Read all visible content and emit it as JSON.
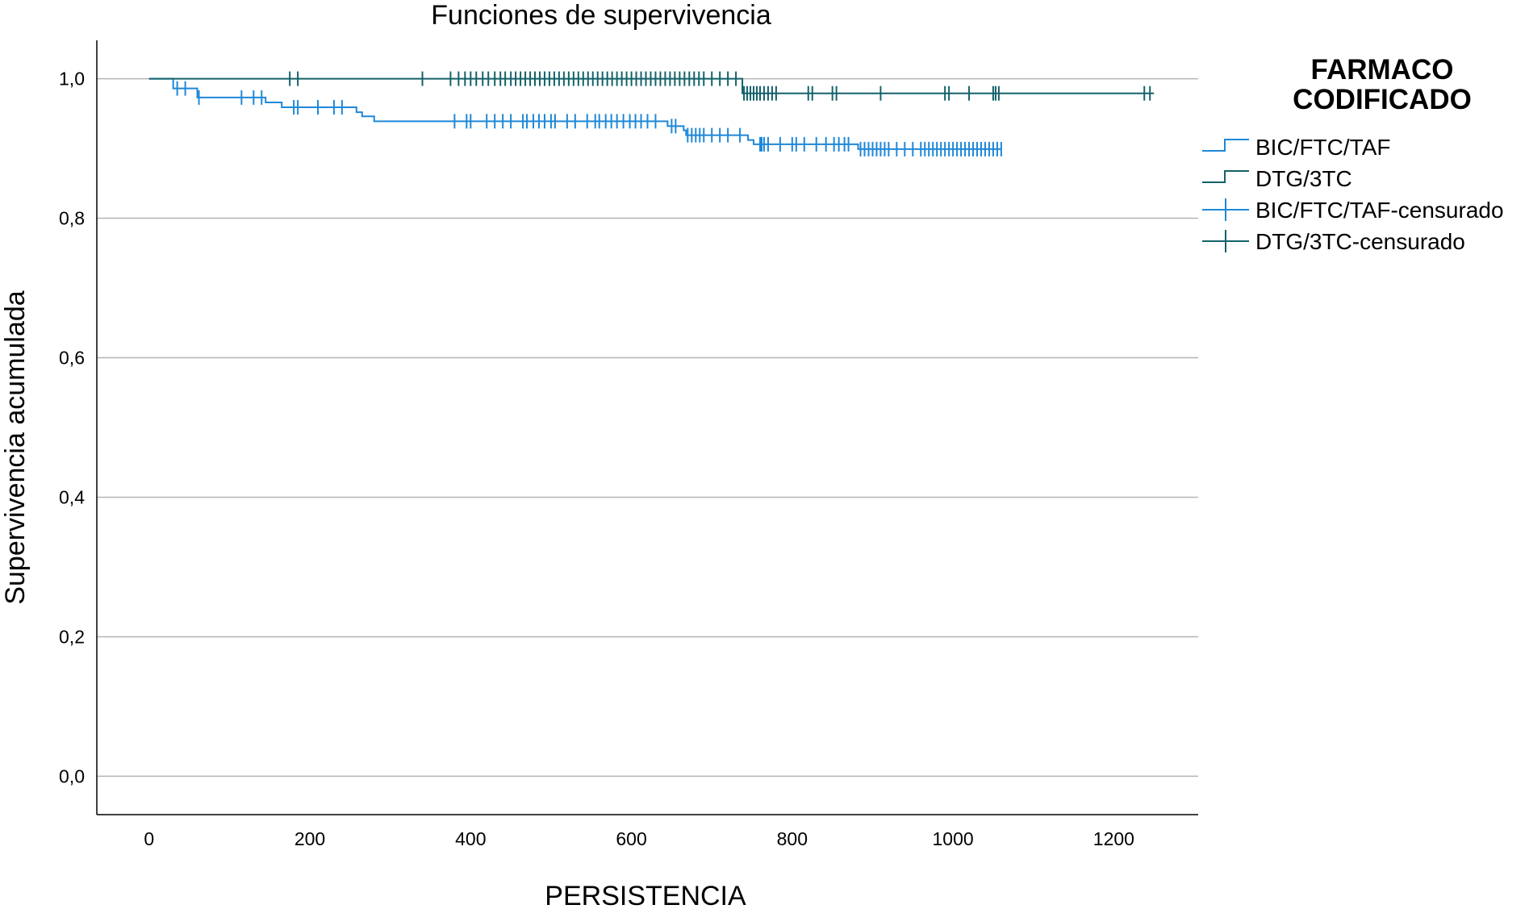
{
  "chart_data": {
    "type": "line",
    "title": "Funciones de supervivencia",
    "xlabel": "PERSISTENCIA",
    "ylabel": "Supervivencia acumulada",
    "xlim": [
      -65,
      1305
    ],
    "ylim": [
      -0.055,
      1.055
    ],
    "xticks": [
      0,
      200,
      400,
      600,
      800,
      1000,
      1200
    ],
    "xtick_labels": [
      "0",
      "200",
      "400",
      "600",
      "800",
      "1000",
      "1200"
    ],
    "yticks": [
      0.0,
      0.2,
      0.4,
      0.6,
      0.8,
      1.0
    ],
    "ytick_labels": [
      "0,0",
      "0,2",
      "0,4",
      "0,6",
      "0,8",
      "1,0"
    ],
    "grid": "horizontal",
    "legend_title": "FARMACO CODIFICADO",
    "legend_position": "right",
    "legend_entries": [
      {
        "label": "BIC/FTC/TAF",
        "kind": "line",
        "color": "#1e88d8"
      },
      {
        "label": "DTG/3TC",
        "kind": "line",
        "color": "#14626a"
      },
      {
        "label": "BIC/FTC/TAF-censurado",
        "kind": "censor",
        "color": "#1e88d8"
      },
      {
        "label": "DTG/3TC-censurado",
        "kind": "censor",
        "color": "#14626a"
      }
    ],
    "series": [
      {
        "name": "BIC/FTC/TAF",
        "color": "#1e88d8",
        "steps": [
          [
            0,
            1.0
          ],
          [
            30,
            0.986
          ],
          [
            60,
            0.973
          ],
          [
            145,
            0.966
          ],
          [
            165,
            0.959
          ],
          [
            258,
            0.952
          ],
          [
            265,
            0.946
          ],
          [
            280,
            0.939
          ],
          [
            645,
            0.932
          ],
          [
            665,
            0.926
          ],
          [
            668,
            0.919
          ],
          [
            745,
            0.912
          ],
          [
            752,
            0.906
          ],
          [
            882,
            0.899
          ],
          [
            1060,
            0.899
          ]
        ],
        "censored": [
          [
            35,
            0.986
          ],
          [
            45,
            0.986
          ],
          [
            62,
            0.973
          ],
          [
            115,
            0.973
          ],
          [
            130,
            0.973
          ],
          [
            140,
            0.973
          ],
          [
            180,
            0.959
          ],
          [
            185,
            0.959
          ],
          [
            210,
            0.959
          ],
          [
            230,
            0.959
          ],
          [
            240,
            0.959
          ],
          [
            380,
            0.939
          ],
          [
            395,
            0.939
          ],
          [
            400,
            0.939
          ],
          [
            420,
            0.939
          ],
          [
            430,
            0.939
          ],
          [
            440,
            0.939
          ],
          [
            450,
            0.939
          ],
          [
            465,
            0.939
          ],
          [
            470,
            0.939
          ],
          [
            478,
            0.939
          ],
          [
            485,
            0.939
          ],
          [
            492,
            0.939
          ],
          [
            500,
            0.939
          ],
          [
            505,
            0.939
          ],
          [
            520,
            0.939
          ],
          [
            530,
            0.939
          ],
          [
            545,
            0.939
          ],
          [
            555,
            0.939
          ],
          [
            560,
            0.939
          ],
          [
            568,
            0.939
          ],
          [
            575,
            0.939
          ],
          [
            582,
            0.939
          ],
          [
            590,
            0.939
          ],
          [
            598,
            0.939
          ],
          [
            605,
            0.939
          ],
          [
            612,
            0.939
          ],
          [
            620,
            0.939
          ],
          [
            630,
            0.939
          ],
          [
            650,
            0.932
          ],
          [
            655,
            0.932
          ],
          [
            670,
            0.919
          ],
          [
            675,
            0.919
          ],
          [
            680,
            0.919
          ],
          [
            685,
            0.919
          ],
          [
            690,
            0.919
          ],
          [
            700,
            0.919
          ],
          [
            710,
            0.919
          ],
          [
            720,
            0.919
          ],
          [
            735,
            0.919
          ],
          [
            760,
            0.906
          ],
          [
            762,
            0.906
          ],
          [
            765,
            0.906
          ],
          [
            770,
            0.906
          ],
          [
            785,
            0.906
          ],
          [
            800,
            0.906
          ],
          [
            805,
            0.906
          ],
          [
            815,
            0.906
          ],
          [
            830,
            0.906
          ],
          [
            842,
            0.906
          ],
          [
            852,
            0.906
          ],
          [
            858,
            0.906
          ],
          [
            865,
            0.906
          ],
          [
            870,
            0.906
          ],
          [
            885,
            0.899
          ],
          [
            890,
            0.899
          ],
          [
            895,
            0.899
          ],
          [
            900,
            0.899
          ],
          [
            905,
            0.899
          ],
          [
            910,
            0.899
          ],
          [
            915,
            0.899
          ],
          [
            920,
            0.899
          ],
          [
            930,
            0.899
          ],
          [
            940,
            0.899
          ],
          [
            950,
            0.899
          ],
          [
            960,
            0.899
          ],
          [
            965,
            0.899
          ],
          [
            970,
            0.899
          ],
          [
            975,
            0.899
          ],
          [
            980,
            0.899
          ],
          [
            985,
            0.899
          ],
          [
            990,
            0.899
          ],
          [
            995,
            0.899
          ],
          [
            1000,
            0.899
          ],
          [
            1005,
            0.899
          ],
          [
            1010,
            0.899
          ],
          [
            1015,
            0.899
          ],
          [
            1020,
            0.899
          ],
          [
            1025,
            0.899
          ],
          [
            1030,
            0.899
          ],
          [
            1035,
            0.899
          ],
          [
            1040,
            0.899
          ],
          [
            1045,
            0.899
          ],
          [
            1050,
            0.899
          ],
          [
            1055,
            0.899
          ],
          [
            1060,
            0.899
          ]
        ]
      },
      {
        "name": "DTG/3TC",
        "color": "#14626a",
        "steps": [
          [
            0,
            1.0
          ],
          [
            738,
            0.979
          ],
          [
            1250,
            0.979
          ]
        ],
        "censored": [
          [
            175,
            1.0
          ],
          [
            185,
            1.0
          ],
          [
            340,
            1.0
          ],
          [
            375,
            1.0
          ],
          [
            385,
            1.0
          ],
          [
            393,
            1.0
          ],
          [
            400,
            1.0
          ],
          [
            407,
            1.0
          ],
          [
            415,
            1.0
          ],
          [
            422,
            1.0
          ],
          [
            430,
            1.0
          ],
          [
            437,
            1.0
          ],
          [
            443,
            1.0
          ],
          [
            450,
            1.0
          ],
          [
            456,
            1.0
          ],
          [
            462,
            1.0
          ],
          [
            468,
            1.0
          ],
          [
            474,
            1.0
          ],
          [
            480,
            1.0
          ],
          [
            486,
            1.0
          ],
          [
            492,
            1.0
          ],
          [
            498,
            1.0
          ],
          [
            504,
            1.0
          ],
          [
            510,
            1.0
          ],
          [
            516,
            1.0
          ],
          [
            522,
            1.0
          ],
          [
            528,
            1.0
          ],
          [
            534,
            1.0
          ],
          [
            540,
            1.0
          ],
          [
            546,
            1.0
          ],
          [
            552,
            1.0
          ],
          [
            558,
            1.0
          ],
          [
            564,
            1.0
          ],
          [
            570,
            1.0
          ],
          [
            576,
            1.0
          ],
          [
            582,
            1.0
          ],
          [
            588,
            1.0
          ],
          [
            594,
            1.0
          ],
          [
            600,
            1.0
          ],
          [
            606,
            1.0
          ],
          [
            612,
            1.0
          ],
          [
            618,
            1.0
          ],
          [
            624,
            1.0
          ],
          [
            630,
            1.0
          ],
          [
            636,
            1.0
          ],
          [
            642,
            1.0
          ],
          [
            648,
            1.0
          ],
          [
            654,
            1.0
          ],
          [
            660,
            1.0
          ],
          [
            666,
            1.0
          ],
          [
            672,
            1.0
          ],
          [
            678,
            1.0
          ],
          [
            684,
            1.0
          ],
          [
            690,
            1.0
          ],
          [
            700,
            1.0
          ],
          [
            710,
            1.0
          ],
          [
            720,
            1.0
          ],
          [
            730,
            1.0
          ],
          [
            740,
            0.979
          ],
          [
            744,
            0.979
          ],
          [
            748,
            0.979
          ],
          [
            752,
            0.979
          ],
          [
            756,
            0.979
          ],
          [
            760,
            0.979
          ],
          [
            765,
            0.979
          ],
          [
            770,
            0.979
          ],
          [
            775,
            0.979
          ],
          [
            780,
            0.979
          ],
          [
            820,
            0.979
          ],
          [
            825,
            0.979
          ],
          [
            850,
            0.979
          ],
          [
            855,
            0.979
          ],
          [
            910,
            0.979
          ],
          [
            990,
            0.979
          ],
          [
            995,
            0.979
          ],
          [
            1020,
            0.979
          ],
          [
            1050,
            0.979
          ],
          [
            1053,
            0.979
          ],
          [
            1057,
            0.979
          ],
          [
            1238,
            0.979
          ],
          [
            1245,
            0.979
          ]
        ]
      }
    ]
  }
}
